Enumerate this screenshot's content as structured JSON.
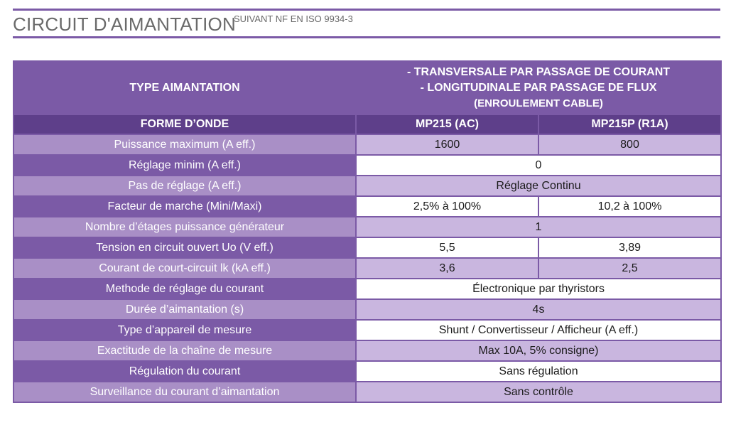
{
  "heading": {
    "title": "CIRCUIT D'AIMANTATION",
    "subtitle": "SUIVANT NF EN ISO 9934-3"
  },
  "table": {
    "header": {
      "type_label": "TYPE AIMANTATION",
      "type_line1": "- TRANSVERSALE PAR PASSAGE DE COURANT",
      "type_line2": "- LONGITUDINALE PAR PASSAGE DE FLUX",
      "type_line3": "(ENROULEMENT CABLE)",
      "waveform_label": "FORME D’ONDE",
      "model_1": "MP215 (AC)",
      "model_2": "MP215P (R1A)"
    },
    "rows": [
      {
        "label": "Puissance maximum (A eff.)",
        "values": [
          "1600",
          "800"
        ]
      },
      {
        "label": "Réglage minim (A eff.)",
        "values": [
          "0"
        ]
      },
      {
        "label": "Pas de réglage (A eff.)",
        "values": [
          "Réglage Continu"
        ]
      },
      {
        "label": "Facteur de marche (Mini/Maxi)",
        "values": [
          "2,5% à 100%",
          "10,2 à 100%"
        ]
      },
      {
        "label": "Nombre d’étages puissance générateur",
        "values": [
          "1"
        ]
      },
      {
        "label": "Tension en circuit ouvert Uo (V eff.)",
        "values": [
          "5,5",
          "3,89"
        ]
      },
      {
        "label": "Courant de court-circuit lk (kA eff.)",
        "values": [
          "3,6",
          "2,5"
        ]
      },
      {
        "label": "Methode de réglage du courant",
        "values": [
          "Électronique par thyristors"
        ]
      },
      {
        "label": "Durée d’aimantation (s)",
        "values": [
          "4s"
        ]
      },
      {
        "label": "Type d’appareil de mesure",
        "values": [
          "Shunt / Convertisseur / Afficheur (A eff.)"
        ]
      },
      {
        "label": "Exactitude de la chaîne de mesure",
        "values": [
          "Max 10A, 5% consigne)"
        ]
      },
      {
        "label": "Régulation du courant",
        "values": [
          "Sans régulation"
        ]
      },
      {
        "label": "Surveillance du courant d’aimantation",
        "values": [
          "Sans contrôle"
        ]
      }
    ]
  },
  "colors": {
    "accent_purple": "#7b5aa6",
    "dark_purple": "#5e3f8a",
    "light_purple": "#a98fc6",
    "lavender": "#c9b6df",
    "title_gray": "#6a6a6a"
  }
}
